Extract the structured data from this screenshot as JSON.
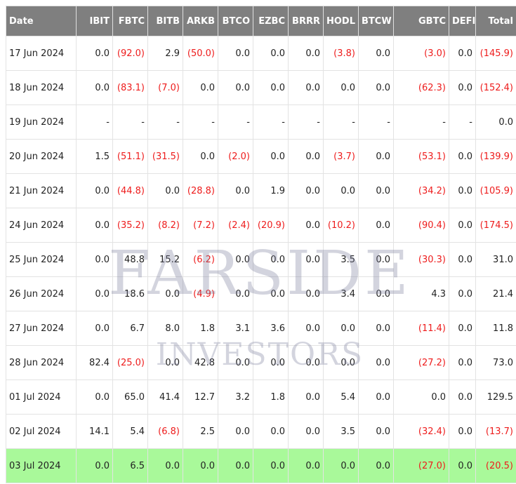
{
  "watermark": {
    "line1": "FARSIDE",
    "line2": "INVESTORS"
  },
  "columns": [
    "Date",
    "IBIT",
    "FBTC",
    "BITB",
    "ARKB",
    "BTCO",
    "EZBC",
    "BRRR",
    "HODL",
    "BTCW",
    "GBTC",
    "DEFI",
    "Total"
  ],
  "rows": [
    [
      "17 Jun 2024",
      "0.0",
      "(92.0)",
      "2.9",
      "(50.0)",
      "0.0",
      "0.0",
      "0.0",
      "(3.8)",
      "0.0",
      "(3.0)",
      "0.0",
      "(145.9)"
    ],
    [
      "18 Jun 2024",
      "0.0",
      "(83.1)",
      "(7.0)",
      "0.0",
      "0.0",
      "0.0",
      "0.0",
      "0.0",
      "0.0",
      "(62.3)",
      "0.0",
      "(152.4)"
    ],
    [
      "19 Jun 2024",
      "-",
      "-",
      "-",
      "-",
      "-",
      "-",
      "-",
      "-",
      "-",
      "-",
      "-",
      "0.0"
    ],
    [
      "20 Jun 2024",
      "1.5",
      "(51.1)",
      "(31.5)",
      "0.0",
      "(2.0)",
      "0.0",
      "0.0",
      "(3.7)",
      "0.0",
      "(53.1)",
      "0.0",
      "(139.9)"
    ],
    [
      "21 Jun 2024",
      "0.0",
      "(44.8)",
      "0.0",
      "(28.8)",
      "0.0",
      "1.9",
      "0.0",
      "0.0",
      "0.0",
      "(34.2)",
      "0.0",
      "(105.9)"
    ],
    [
      "24 Jun 2024",
      "0.0",
      "(35.2)",
      "(8.2)",
      "(7.2)",
      "(2.4)",
      "(20.9)",
      "0.0",
      "(10.2)",
      "0.0",
      "(90.4)",
      "0.0",
      "(174.5)"
    ],
    [
      "25 Jun 2024",
      "0.0",
      "48.8",
      "15.2",
      "(6.2)",
      "0.0",
      "0.0",
      "0.0",
      "3.5",
      "0.0",
      "(30.3)",
      "0.0",
      "31.0"
    ],
    [
      "26 Jun 2024",
      "0.0",
      "18.6",
      "0.0",
      "(4.9)",
      "0.0",
      "0.0",
      "0.0",
      "3.4",
      "0.0",
      "4.3",
      "0.0",
      "21.4"
    ],
    [
      "27 Jun 2024",
      "0.0",
      "6.7",
      "8.0",
      "1.8",
      "3.1",
      "3.6",
      "0.0",
      "0.0",
      "0.0",
      "(11.4)",
      "0.0",
      "11.8"
    ],
    [
      "28 Jun 2024",
      "82.4",
      "(25.0)",
      "0.0",
      "42.8",
      "0.0",
      "0.0",
      "0.0",
      "0.0",
      "0.0",
      "(27.2)",
      "0.0",
      "73.0"
    ],
    [
      "01 Jul 2024",
      "0.0",
      "65.0",
      "41.4",
      "12.7",
      "3.2",
      "1.8",
      "0.0",
      "5.4",
      "0.0",
      "0.0",
      "0.0",
      "129.5"
    ],
    [
      "02 Jul 2024",
      "14.1",
      "5.4",
      "(6.8)",
      "2.5",
      "0.0",
      "0.0",
      "0.0",
      "3.5",
      "0.0",
      "(32.4)",
      "0.0",
      "(13.7)"
    ],
    [
      "03 Jul 2024",
      "0.0",
      "6.5",
      "0.0",
      "0.0",
      "0.0",
      "0.0",
      "0.0",
      "0.0",
      "0.0",
      "(27.0)",
      "0.0",
      "(20.5)"
    ]
  ],
  "highlight_row_index": 12,
  "colors": {
    "header_bg": "#7f7f7f",
    "negative": "#ee1c1c",
    "highlight": "#a9f99a"
  }
}
